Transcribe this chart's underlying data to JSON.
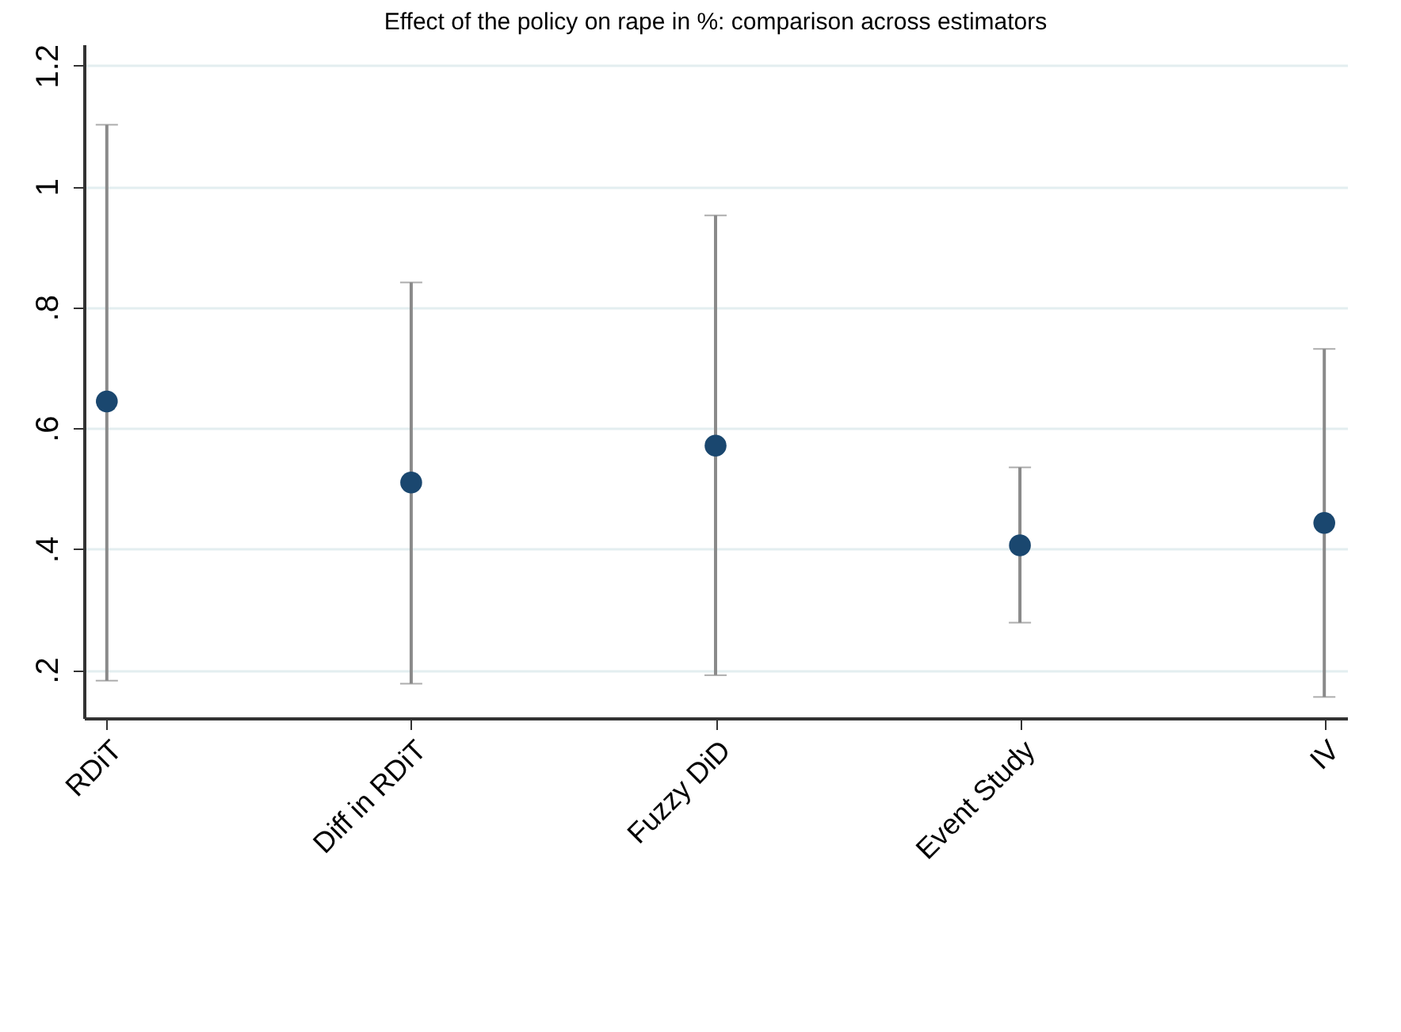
{
  "chart_data": {
    "type": "scatter",
    "title": "Effect of the policy on rape in %: comparison across estimators",
    "categories": [
      "RDiT",
      "Diff in RDiT",
      "Fuzzy DiD",
      "Event Study",
      "IV"
    ],
    "series": [
      {
        "color": "#1a476f",
        "values": [
          0.644,
          0.51,
          0.571,
          0.406,
          0.443
        ],
        "errors": [
          [
            0.182,
            1.102
          ],
          [
            0.177,
            0.841
          ],
          [
            0.191,
            0.952
          ],
          [
            0.278,
            0.535
          ],
          [
            0.155,
            0.731
          ]
        ]
      }
    ],
    "ylim": [
      0.12,
      1.235
    ],
    "yticks": [
      {
        "value": 0.2,
        "label": ".2"
      },
      {
        "value": 0.4,
        "label": ".4"
      },
      {
        "value": 0.6,
        "label": ".6"
      },
      {
        "value": 0.8,
        "label": ".8"
      },
      1,
      1.2
    ],
    "grid": "y",
    "marker": "circle"
  }
}
